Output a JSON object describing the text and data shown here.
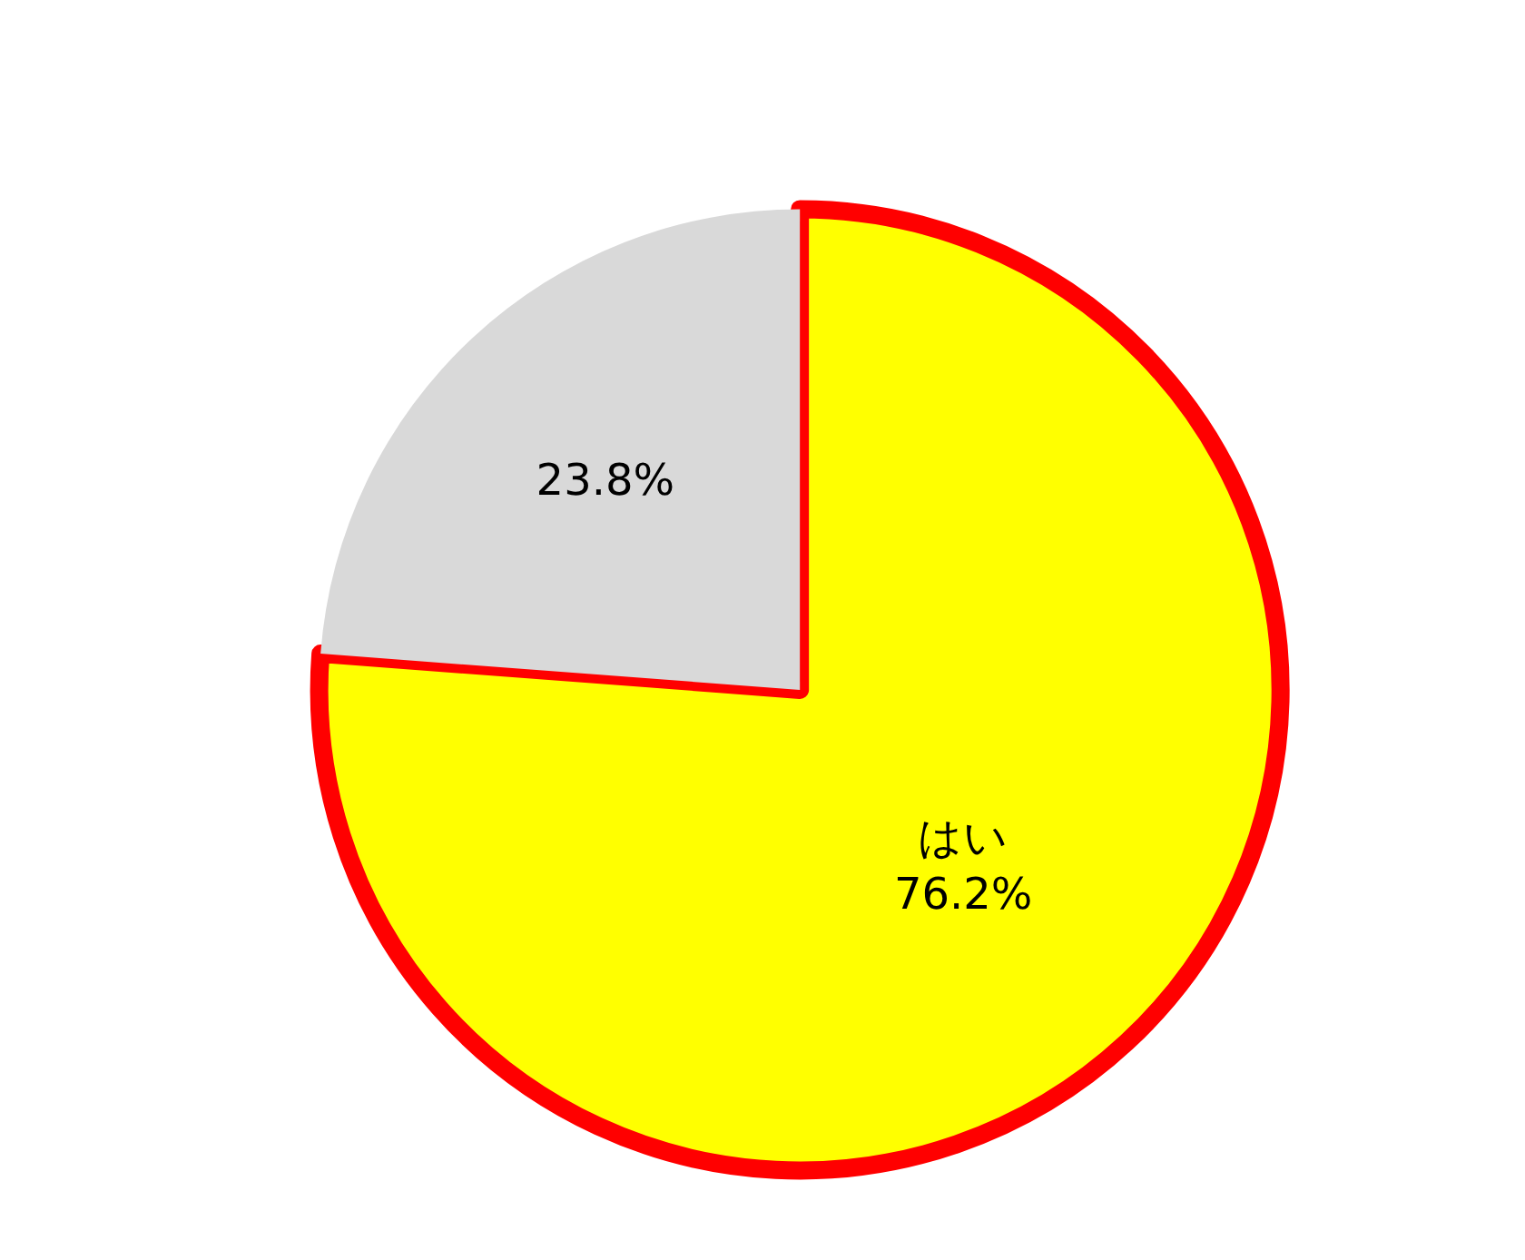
{
  "chart_data": {
    "type": "pie",
    "categories": [
      "はい",
      null
    ],
    "values": [
      76.2,
      23.8
    ],
    "value_labels": [
      "76.2%",
      "23.8%"
    ],
    "colors": [
      "#ffff00",
      "#d9d9d9"
    ]
  }
}
